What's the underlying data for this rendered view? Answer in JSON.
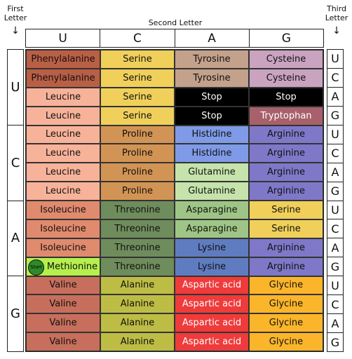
{
  "labels": {
    "first_letter": [
      "First",
      "Letter"
    ],
    "second_letter": "Second Letter",
    "third_letter": [
      "Third",
      "Letter"
    ],
    "arrow": "↓"
  },
  "bases": [
    "U",
    "C",
    "A",
    "G"
  ],
  "start_badge": "Start",
  "rows": [
    [
      "Phenylalanine",
      "Serine",
      "Tyrosine",
      "Cysteine"
    ],
    [
      "Phenylalanine",
      "Serine",
      "Tyrosine",
      "Cysteine"
    ],
    [
      "Leucine",
      "Serine",
      "Stop",
      "Stop"
    ],
    [
      "Leucine",
      "Serine",
      "Stop",
      "Tryptophan"
    ],
    [
      "Leucine",
      "Proline",
      "Histidine",
      "Arginine"
    ],
    [
      "Leucine",
      "Proline",
      "Histidine",
      "Arginine"
    ],
    [
      "Leucine",
      "Proline",
      "Glutamine",
      "Arginine"
    ],
    [
      "Leucine",
      "Proline",
      "Glutamine",
      "Arginine"
    ],
    [
      "Isoleucine",
      "Threonine",
      "Asparagine",
      "Serine"
    ],
    [
      "Isoleucine",
      "Threonine",
      "Asparagine",
      "Serine"
    ],
    [
      "Isoleucine",
      "Threonine",
      "Lysine",
      "Arginine"
    ],
    [
      "Methionine",
      "Threonine",
      "Lysine",
      "Arginine"
    ],
    [
      "Valine",
      "Alanine",
      "Aspartic acid",
      "Glycine"
    ],
    [
      "Valine",
      "Alanine",
      "Aspartic acid",
      "Glycine"
    ],
    [
      "Valine",
      "Alanine",
      "Aspartic acid",
      "Glycine"
    ],
    [
      "Valine",
      "Alanine",
      "Aspartic acid",
      "Glycine"
    ]
  ],
  "colors": {
    "Phenylalanine": "#b95f45",
    "Serine": "#f0d05a",
    "Tyrosine": "#c3a18b",
    "Cysteine": "#c9a3c0",
    "Leucine": "#f7b29a",
    "Stop": "#000000",
    "Tryptophan": "#a8606a",
    "Proline": "#d29454",
    "Histidine": "#7f9ae6",
    "Arginine": "#7f78c8",
    "Glutamine": "#c5e3ab",
    "Isoleucine": "#e08a6e",
    "Threonine": "#6f8c5c",
    "Asparagine": "#9ec585",
    "Lysine": "#5f7cc0",
    "Methionine": "#b5f04e",
    "Valine": "#c76f5c",
    "Alanine": "#bdbd45",
    "Aspartic acid": "#ef3b3b",
    "Glycine": "#fbb52a"
  },
  "text_colors": {
    "Stop": "#ffffff",
    "Aspartic acid": "#ffffff",
    "Tryptophan": "#ffffff"
  }
}
